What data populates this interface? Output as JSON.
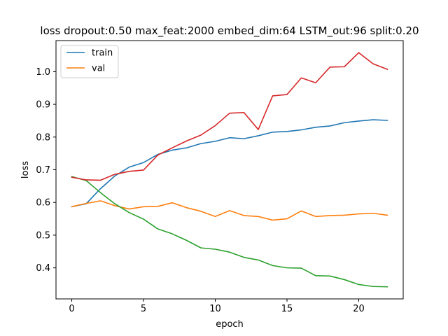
{
  "chart_data": {
    "type": "line",
    "title": "loss dropout:0.50 max_feat:2000 embed_dim:64 LSTM_out:96 split:0.20",
    "xlabel": "epoch",
    "ylabel": "loss",
    "xlim": [
      -1.1,
      23.1
    ],
    "ylim": [
      0.305,
      1.095
    ],
    "xticks": [
      0,
      5,
      10,
      15,
      20
    ],
    "xtick_labels": [
      "0",
      "5",
      "10",
      "15",
      "20"
    ],
    "yticks": [
      0.4,
      0.5,
      0.6,
      0.7,
      0.8,
      0.9,
      1.0
    ],
    "ytick_labels": [
      "0.4",
      "0.5",
      "0.6",
      "0.7",
      "0.8",
      "0.9",
      "1.0"
    ],
    "grid": false,
    "legend_position": "top-left",
    "x": [
      0,
      1,
      2,
      3,
      4,
      5,
      6,
      7,
      8,
      9,
      10,
      11,
      12,
      13,
      14,
      15,
      16,
      17,
      18,
      19,
      20,
      21,
      22
    ],
    "series": [
      {
        "name": "train",
        "color": "#1f77b4",
        "values": [
          0.587,
          0.596,
          0.642,
          0.681,
          0.708,
          0.722,
          0.747,
          0.76,
          0.767,
          0.78,
          0.787,
          0.798,
          0.795,
          0.804,
          0.815,
          0.817,
          0.822,
          0.83,
          0.834,
          0.844,
          0.849,
          0.853,
          0.851
        ]
      },
      {
        "name": "val",
        "color": "#ff7f0e",
        "values": [
          0.587,
          0.597,
          0.605,
          0.59,
          0.58,
          0.587,
          0.588,
          0.599,
          0.584,
          0.573,
          0.557,
          0.575,
          0.56,
          0.557,
          0.546,
          0.55,
          0.574,
          0.557,
          0.56,
          0.561,
          0.565,
          0.567,
          0.561
        ]
      },
      {
        "color": "#2ca02c",
        "values": [
          0.679,
          0.667,
          0.63,
          0.596,
          0.569,
          0.549,
          0.519,
          0.504,
          0.484,
          0.461,
          0.457,
          0.448,
          0.432,
          0.424,
          0.407,
          0.4,
          0.399,
          0.376,
          0.375,
          0.364,
          0.349,
          0.343,
          0.342
        ]
      },
      {
        "color": "#d62728",
        "values": [
          0.677,
          0.669,
          0.668,
          0.686,
          0.695,
          0.699,
          0.745,
          0.767,
          0.788,
          0.806,
          0.835,
          0.873,
          0.875,
          0.823,
          0.926,
          0.93,
          0.981,
          0.966,
          1.014,
          1.015,
          1.058,
          1.024,
          1.007
        ]
      }
    ]
  }
}
